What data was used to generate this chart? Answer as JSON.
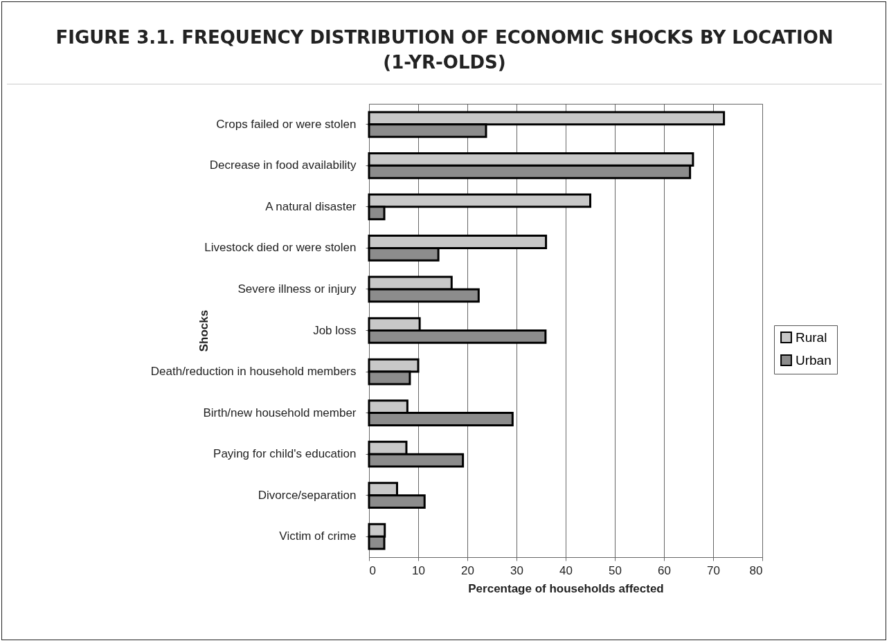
{
  "chart_data": {
    "type": "bar",
    "orientation": "horizontal",
    "title": "FIGURE 3.1. FREQUENCY DISTRIBUTION OF ECONOMIC SHOCKS BY LOCATION (1-YR-OLDS)",
    "xlabel": "Percentage of households affected",
    "ylabel": "Shocks",
    "categories": [
      "Crops failed or were stolen",
      "Decrease in food availability",
      "A natural disaster",
      "Livestock died or were stolen",
      "Severe illness or injury",
      "Job loss",
      "Death/reduction in household members",
      "Birth/new household member",
      "Paying for child's education",
      "Divorce/separation",
      "Victim of crime"
    ],
    "series": [
      {
        "name": "Rural",
        "color": "#c8c8c8",
        "values": [
          72.2,
          65.9,
          45.0,
          36.0,
          16.8,
          10.3,
          10.0,
          7.8,
          7.6,
          5.7,
          3.2
        ]
      },
      {
        "name": "Urban",
        "color": "#8c8c8c",
        "values": [
          23.8,
          65.3,
          3.1,
          14.1,
          22.3,
          35.9,
          8.3,
          29.2,
          19.1,
          11.3,
          3.1
        ]
      }
    ],
    "xlim": [
      0,
      80
    ],
    "xticks": [
      0,
      10,
      20,
      30,
      40,
      50,
      60,
      70,
      80
    ],
    "grid": "x",
    "legend": "right"
  }
}
